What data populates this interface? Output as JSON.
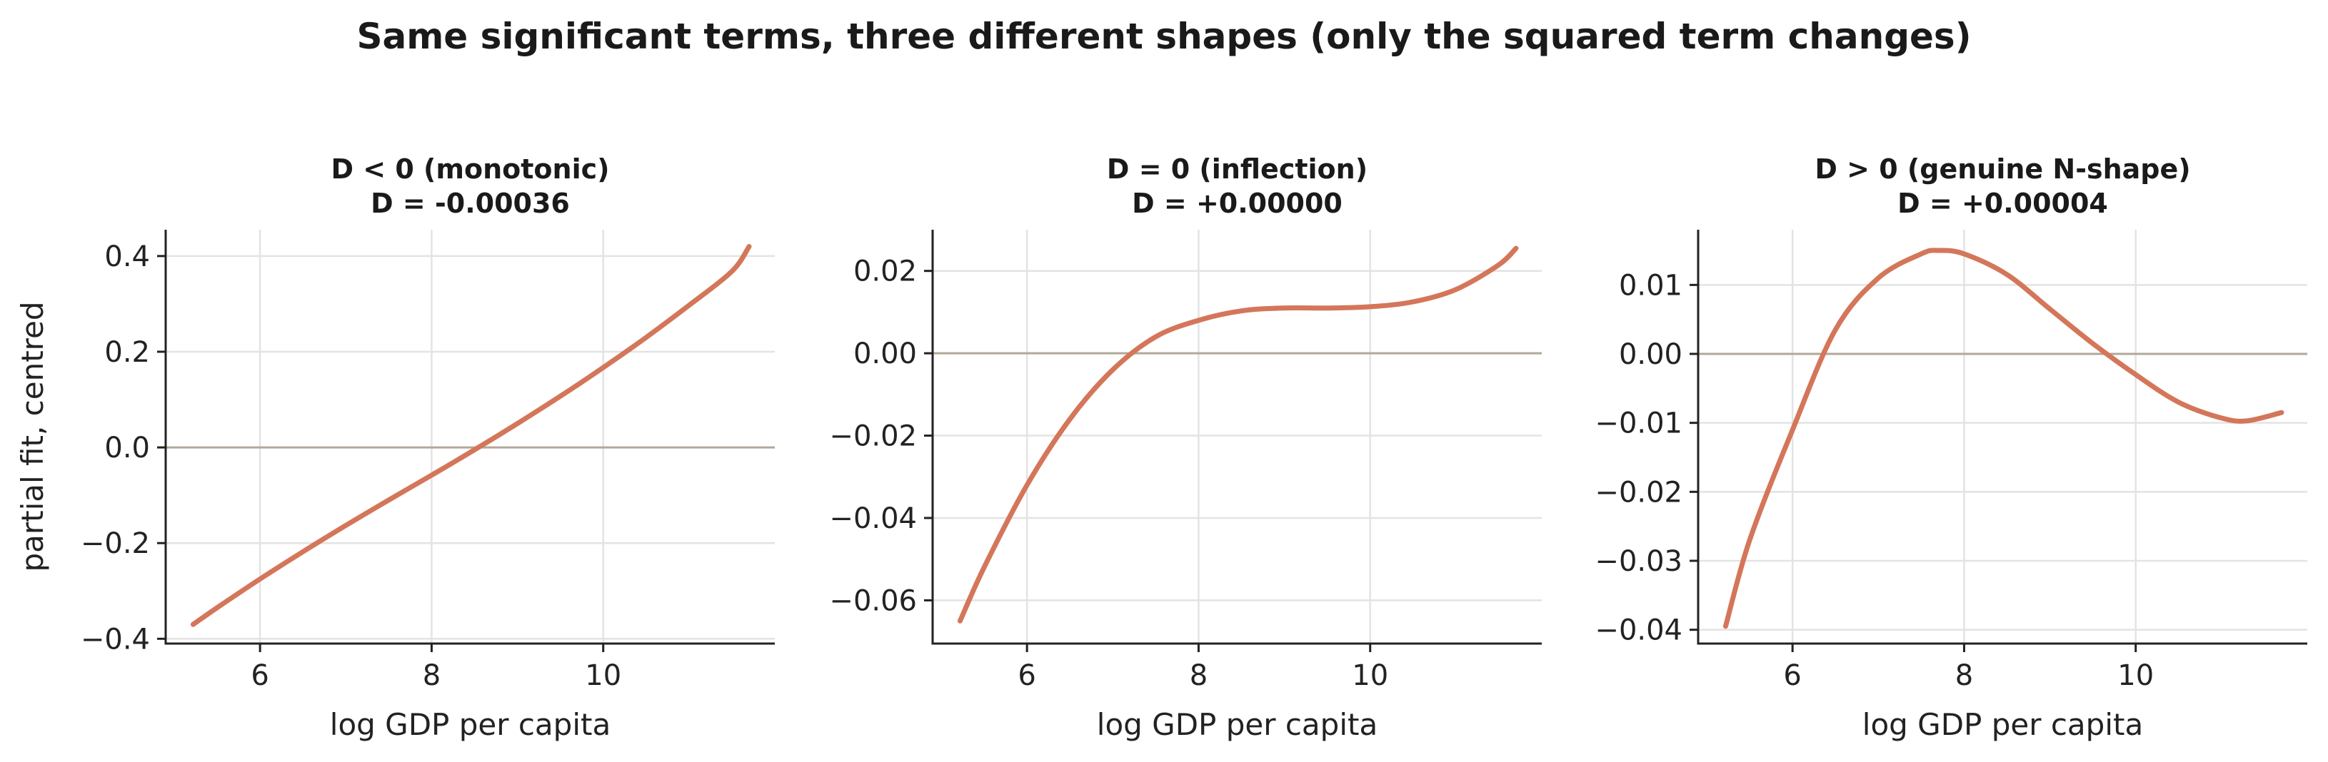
{
  "suptitle": "Same significant terms, three different shapes (only the squared term changes)",
  "colors": {
    "curve": "#d4765a",
    "zero_line": "#b2a898",
    "grid": "#e3e3e3"
  },
  "chart_data": [
    {
      "type": "line",
      "title": [
        "D < 0  (monotonic)",
        "D = -0.00036"
      ],
      "xlabel": "log GDP per capita",
      "ylabel": "partial fit, centred",
      "xlim": [
        4.9,
        12.0
      ],
      "ylim": [
        -0.41,
        0.455
      ],
      "xticks": [
        6,
        8,
        10
      ],
      "yticks": [
        -0.4,
        -0.2,
        0.0,
        0.2,
        0.4
      ],
      "ytick_labels": [
        "−0.4",
        "−0.2",
        "0.0",
        "0.2",
        "0.4"
      ],
      "grid": true,
      "zero_line": 0,
      "series": [
        {
          "x": [
            5.22,
            5.5,
            6.0,
            6.5,
            7.0,
            7.5,
            8.0,
            8.5,
            9.0,
            9.5,
            10.0,
            10.5,
            11.0,
            11.5,
            11.7
          ],
          "y": [
            -0.37,
            -0.335,
            -0.275,
            -0.218,
            -0.163,
            -0.11,
            -0.058,
            -0.005,
            0.05,
            0.107,
            0.167,
            0.23,
            0.297,
            0.368,
            0.42
          ]
        }
      ]
    },
    {
      "type": "line",
      "title": [
        "D = 0  (inflection)",
        "D = +0.00000"
      ],
      "xlabel": "log GDP per capita",
      "ylabel": "",
      "xlim": [
        4.9,
        12.0
      ],
      "ylim": [
        -0.0705,
        0.03
      ],
      "xticks": [
        6,
        8,
        10
      ],
      "yticks": [
        -0.06,
        -0.04,
        -0.02,
        0.0,
        0.02
      ],
      "ytick_labels": [
        "−0.06",
        "−0.04",
        "−0.02",
        "0.00",
        "0.02"
      ],
      "grid": true,
      "zero_line": 0,
      "series": [
        {
          "x": [
            5.22,
            5.5,
            6.0,
            6.5,
            7.0,
            7.5,
            8.0,
            8.5,
            9.0,
            9.5,
            10.0,
            10.5,
            11.0,
            11.5,
            11.7
          ],
          "y": [
            -0.065,
            -0.052,
            -0.032,
            -0.016,
            -0.004,
            0.004,
            0.008,
            0.0103,
            0.011,
            0.011,
            0.0113,
            0.0125,
            0.0155,
            0.0215,
            0.0255
          ]
        }
      ]
    },
    {
      "type": "line",
      "title": [
        "D > 0  (genuine N-shape)",
        "D = +0.00004"
      ],
      "xlabel": "log GDP per capita",
      "ylabel": "",
      "xlim": [
        4.9,
        12.0
      ],
      "ylim": [
        -0.042,
        0.018
      ],
      "xticks": [
        6,
        8,
        10
      ],
      "yticks": [
        -0.04,
        -0.03,
        -0.02,
        -0.01,
        0.0,
        0.01
      ],
      "ytick_labels": [
        "−0.04",
        "−0.03",
        "−0.02",
        "−0.01",
        "0.00",
        "0.01"
      ],
      "grid": true,
      "zero_line": 0,
      "series": [
        {
          "x": [
            5.22,
            5.5,
            6.0,
            6.5,
            7.0,
            7.5,
            7.7,
            8.0,
            8.5,
            9.0,
            9.5,
            10.0,
            10.5,
            11.0,
            11.3,
            11.7
          ],
          "y": [
            -0.0395,
            -0.027,
            -0.011,
            0.0035,
            0.011,
            0.0145,
            0.015,
            0.0145,
            0.0115,
            0.0065,
            0.0015,
            -0.003,
            -0.007,
            -0.0093,
            -0.0097,
            -0.0085
          ]
        }
      ]
    }
  ]
}
